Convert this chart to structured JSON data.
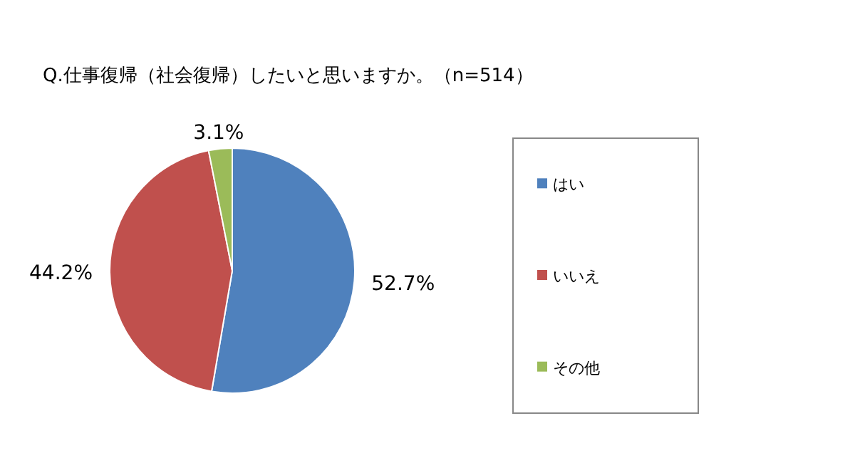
{
  "chart_data": {
    "type": "pie",
    "title": "Q.仕事復帰（社会復帰）したいと思いますか。（n=514）",
    "categories": [
      "はい",
      "いいえ",
      "その他"
    ],
    "values": [
      52.7,
      44.2,
      3.1
    ],
    "colors": [
      "#4f81bd",
      "#c0504d",
      "#9bbb59"
    ],
    "value_labels": [
      "52.7%",
      "44.2%",
      "3.1%"
    ],
    "legend": "right"
  }
}
